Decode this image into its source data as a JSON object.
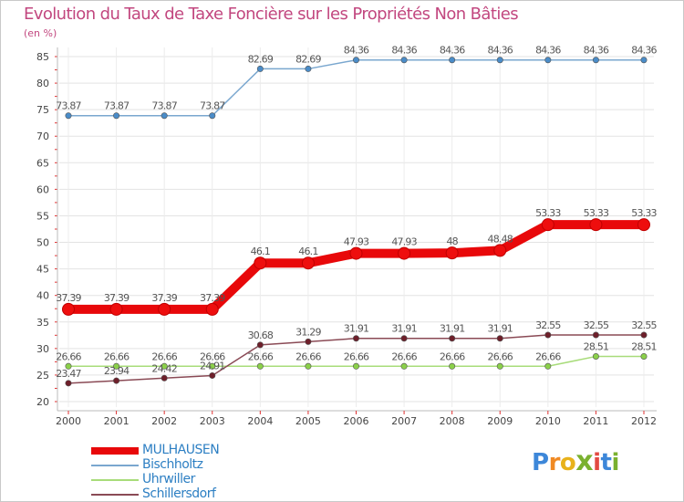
{
  "header": {
    "title": "Evolution du Taux de Taxe Foncière sur les Propriétés Non Bâties",
    "unit_label": "(en %)"
  },
  "logo": {
    "text": "Proxiti"
  },
  "chart_data": {
    "type": "line",
    "title": "Evolution du Taux de Taxe Foncière sur les Propriétés Non Bâties",
    "ylabel": "(en %)",
    "xlabel": "",
    "ylim": [
      20,
      85
    ],
    "yticks": [
      20,
      25,
      30,
      35,
      40,
      45,
      50,
      55,
      60,
      65,
      70,
      75,
      80,
      85
    ],
    "grid": true,
    "legend_position": "bottom-left",
    "categories": [
      "2000",
      "2001",
      "2002",
      "2003",
      "2004",
      "2005",
      "2006",
      "2007",
      "2008",
      "2009",
      "2010",
      "2011",
      "2012"
    ],
    "series": [
      {
        "name": "MULHAUSEN",
        "color": "#e8080a",
        "marker_fill": "#ee0e0e",
        "emphasis": "bold",
        "values": [
          37.39,
          37.39,
          37.39,
          37.39,
          46.1,
          46.1,
          47.93,
          47.93,
          48,
          48.48,
          53.33,
          53.33,
          53.33
        ],
        "labels": [
          "37.39",
          "37.39",
          "37.39",
          "37.39",
          "46.1",
          "46.1",
          "47.93",
          "47.93",
          "48",
          "48.48",
          "53.33",
          "53.33",
          "53.33"
        ]
      },
      {
        "name": "Bischholtz",
        "color": "#7aa7cf",
        "marker_fill": "#4a8cc8",
        "emphasis": "normal",
        "values": [
          73.87,
          73.87,
          73.87,
          73.87,
          82.69,
          82.69,
          84.36,
          84.36,
          84.36,
          84.36,
          84.36,
          84.36,
          84.36
        ],
        "labels": [
          "73.87",
          "73.87",
          "73.87",
          "73.87",
          "82.69",
          "82.69",
          "84.36",
          "84.36",
          "84.36",
          "84.36",
          "84.36",
          "84.36",
          "84.36"
        ]
      },
      {
        "name": "Uhrwiller",
        "color": "#a8dc7a",
        "marker_fill": "#8bd04a",
        "emphasis": "normal",
        "values": [
          26.66,
          26.66,
          26.66,
          26.66,
          26.66,
          26.66,
          26.66,
          26.66,
          26.66,
          26.66,
          26.66,
          28.51,
          28.51
        ],
        "labels": [
          "26.66",
          "26.66",
          "26.66",
          "26.66",
          "26.66",
          "26.66",
          "26.66",
          "26.66",
          "26.66",
          "26.66",
          "26.66",
          "28.51",
          "28.51"
        ]
      },
      {
        "name": "Schillersdorf",
        "color": "#8a4a55",
        "marker_fill": "#6e1f2a",
        "emphasis": "normal",
        "values": [
          23.47,
          23.94,
          24.42,
          24.91,
          30.68,
          31.29,
          31.91,
          31.91,
          31.91,
          31.91,
          32.55,
          32.55,
          32.55
        ],
        "labels": [
          "23.47",
          "23.94",
          "24.42",
          "24.91",
          "30.68",
          "31.29",
          "31.91",
          "31.91",
          "31.91",
          "31.91",
          "32.55",
          "32.55",
          "32.55"
        ]
      }
    ]
  }
}
